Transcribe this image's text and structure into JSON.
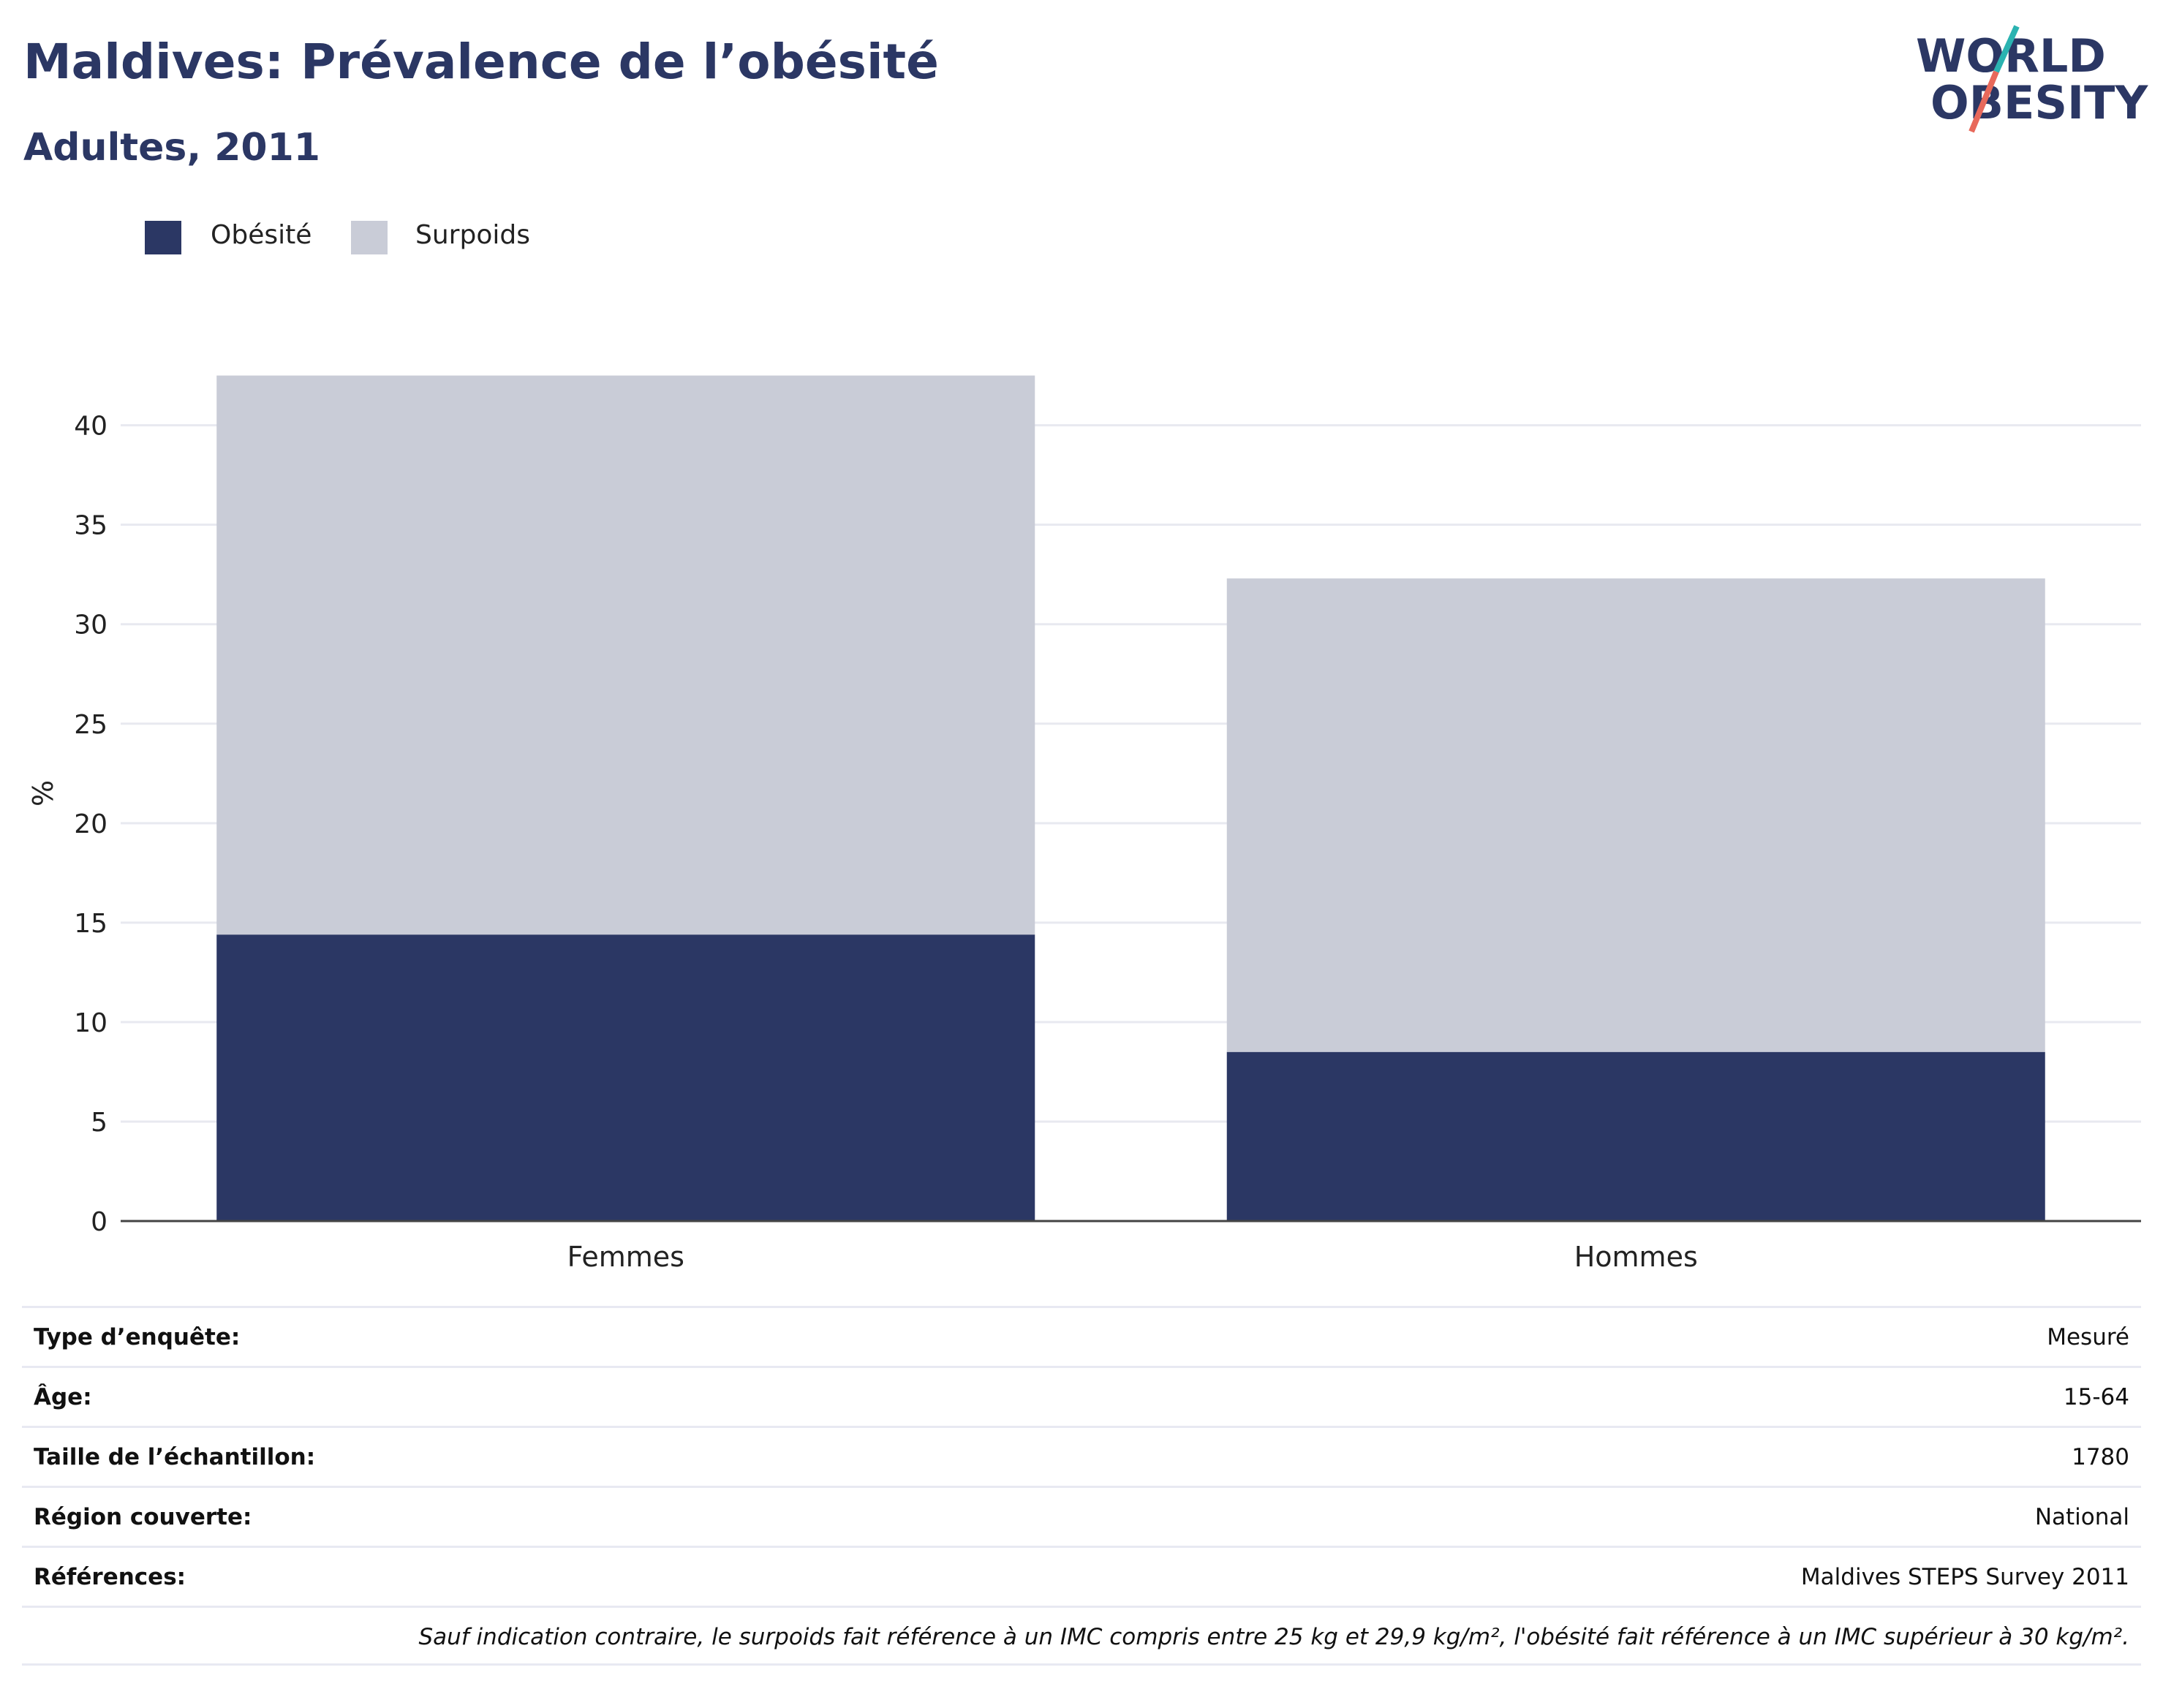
{
  "header": {
    "title": "Maldives: Prévalence de l’obésité",
    "subtitle": "Adultes, 2011"
  },
  "logo": {
    "line1": "WORLD",
    "line2": "OBESITY",
    "colors": {
      "text": "#2b3764",
      "slash_top": "#2bb3b1",
      "slash_bottom": "#e8695b"
    }
  },
  "colors": {
    "obesite": "#2b3764",
    "surpoids": "#c9ccd7",
    "grid": "#e8e9f0",
    "axis": "#444444"
  },
  "legend": [
    {
      "label": "Obésité",
      "color": "#2b3764"
    },
    {
      "label": "Surpoids",
      "color": "#c9ccd7"
    }
  ],
  "chart_data": {
    "type": "bar",
    "stacked": true,
    "categories": [
      "Femmes",
      "Hommes"
    ],
    "series": [
      {
        "name": "Obésité",
        "values": [
          14.4,
          8.5
        ]
      },
      {
        "name": "Surpoids",
        "values": [
          28.1,
          23.8
        ]
      }
    ],
    "ylabel": "%",
    "ylim": [
      0,
      43
    ],
    "yticks": [
      0,
      5,
      10,
      15,
      20,
      25,
      30,
      35,
      40
    ],
    "grid": true,
    "legend_position": "top-left"
  },
  "meta": {
    "rows": [
      {
        "key": "Type d’enquête:",
        "value": "Mesuré"
      },
      {
        "key": "Âge:",
        "value": "15-64"
      },
      {
        "key": "Taille de l’échantillon:",
        "value": "1780"
      },
      {
        "key": "Région couverte:",
        "value": "National"
      },
      {
        "key": "Références:",
        "value": "Maldives STEPS Survey 2011"
      }
    ],
    "note": "Sauf indication contraire, le surpoids fait référence à un IMC compris entre 25 kg et 29,9 kg/m², l'obésité fait référence à un IMC supérieur à 30 kg/m²."
  }
}
